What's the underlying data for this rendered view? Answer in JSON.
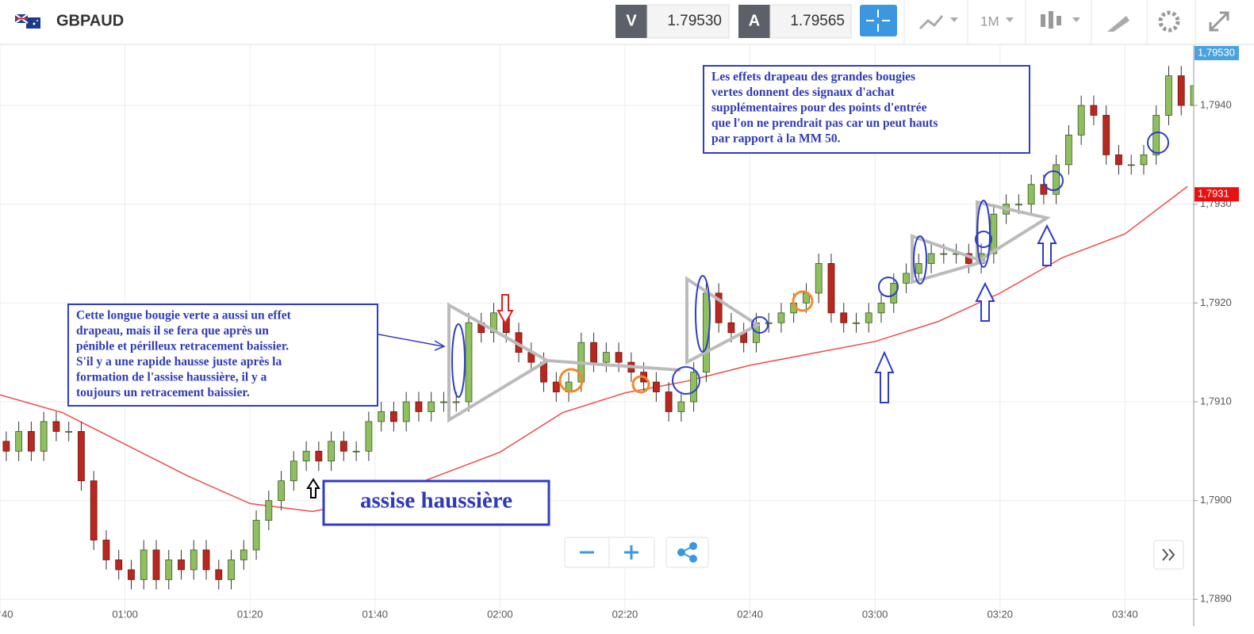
{
  "header": {
    "symbol": "GBPAUD",
    "bid_label": "V",
    "bid": "1.79530",
    "ask_label": "A",
    "ask": "1.79565",
    "timeframe": "1M"
  },
  "chart_data": {
    "type": "candlestick",
    "x": [
      "00:40",
      "00:42",
      "00:44",
      "00:46",
      "00:48",
      "00:50",
      "00:52",
      "00:54",
      "00:56",
      "00:58",
      "01:00",
      "01:02",
      "01:04",
      "01:06",
      "01:08",
      "01:10",
      "01:12",
      "01:14",
      "01:16",
      "01:18",
      "01:20",
      "01:22",
      "01:24",
      "01:26",
      "01:28",
      "01:30",
      "01:32",
      "01:34",
      "01:36",
      "01:38",
      "01:40",
      "01:42",
      "01:44",
      "01:46",
      "01:48",
      "01:50",
      "01:52",
      "01:54",
      "01:56",
      "01:58",
      "02:00",
      "02:02",
      "02:04",
      "02:06",
      "02:08",
      "02:10",
      "02:12",
      "02:14",
      "02:16",
      "02:18",
      "02:20",
      "02:22",
      "02:24",
      "02:26",
      "02:28",
      "02:30",
      "02:32",
      "02:34",
      "02:36",
      "02:38",
      "02:40",
      "02:42",
      "02:44",
      "02:46",
      "02:48",
      "02:50",
      "02:52",
      "02:54",
      "02:56",
      "02:58",
      "03:00",
      "03:02",
      "03:04",
      "03:06",
      "03:08",
      "03:10",
      "03:12",
      "03:14",
      "03:16",
      "03:18",
      "03:20",
      "03:22",
      "03:24",
      "03:26",
      "03:28",
      "03:30",
      "03:32",
      "03:34",
      "03:36",
      "03:38",
      "03:40",
      "03:42",
      "03:44",
      "03:46",
      "03:48",
      "03:50"
    ],
    "open": [
      1.7906,
      1.7905,
      1.7907,
      1.7905,
      1.7908,
      1.7907,
      1.7907,
      1.7902,
      1.7896,
      1.7894,
      1.7893,
      1.7892,
      1.7895,
      1.7892,
      1.7894,
      1.7893,
      1.7895,
      1.7893,
      1.7892,
      1.7894,
      1.7895,
      1.7898,
      1.79,
      1.7902,
      1.7904,
      1.7905,
      1.7904,
      1.7906,
      1.7905,
      1.7905,
      1.7908,
      1.7909,
      1.7908,
      1.791,
      1.7909,
      1.791,
      1.791,
      1.791,
      1.7918,
      1.7917,
      1.7919,
      1.7917,
      1.7915,
      1.7914,
      1.7912,
      1.7911,
      1.7912,
      1.7916,
      1.7914,
      1.7915,
      1.7914,
      1.7913,
      1.7912,
      1.7911,
      1.7909,
      1.791,
      1.7913,
      1.7921,
      1.7918,
      1.7917,
      1.7916,
      1.7918,
      1.7918,
      1.7919,
      1.792,
      1.7921,
      1.7924,
      1.7919,
      1.7918,
      1.7918,
      1.7919,
      1.792,
      1.7922,
      1.7923,
      1.7924,
      1.7925,
      1.7925,
      1.7925,
      1.7924,
      1.7925,
      1.7929,
      1.793,
      1.793,
      1.7932,
      1.7931,
      1.7934,
      1.7937,
      1.794,
      1.7939,
      1.7935,
      1.7934,
      1.7934,
      1.7935,
      1.7939,
      1.7943,
      1.794
    ],
    "high": [
      1.7907,
      1.7908,
      1.7908,
      1.7909,
      1.7909,
      1.7908,
      1.7908,
      1.7903,
      1.7897,
      1.7895,
      1.7894,
      1.7896,
      1.7896,
      1.7895,
      1.7895,
      1.7896,
      1.7896,
      1.7894,
      1.7895,
      1.7896,
      1.7899,
      1.7901,
      1.7903,
      1.7905,
      1.7906,
      1.7906,
      1.7907,
      1.7907,
      1.7906,
      1.7909,
      1.791,
      1.791,
      1.7911,
      1.7911,
      1.7911,
      1.7911,
      1.7911,
      1.7919,
      1.7919,
      1.792,
      1.792,
      1.7918,
      1.7916,
      1.7915,
      1.7913,
      1.7913,
      1.7917,
      1.7917,
      1.7916,
      1.7916,
      1.7915,
      1.7914,
      1.7913,
      1.7912,
      1.7911,
      1.7914,
      1.7922,
      1.7922,
      1.7919,
      1.7918,
      1.7919,
      1.7919,
      1.792,
      1.7921,
      1.7922,
      1.7925,
      1.7925,
      1.792,
      1.7919,
      1.792,
      1.7921,
      1.7923,
      1.7924,
      1.7925,
      1.7926,
      1.7926,
      1.7926,
      1.7926,
      1.7926,
      1.793,
      1.7931,
      1.7931,
      1.7933,
      1.7933,
      1.7935,
      1.7938,
      1.7941,
      1.7941,
      1.794,
      1.7936,
      1.7935,
      1.7936,
      1.794,
      1.7944,
      1.7944,
      1.7943
    ],
    "low": [
      1.7904,
      1.7904,
      1.7904,
      1.7904,
      1.7906,
      1.7906,
      1.7901,
      1.7895,
      1.7893,
      1.7892,
      1.7891,
      1.7891,
      1.7891,
      1.7891,
      1.7892,
      1.7892,
      1.7892,
      1.7891,
      1.7891,
      1.7893,
      1.7894,
      1.7897,
      1.7899,
      1.7901,
      1.7903,
      1.7903,
      1.7903,
      1.7904,
      1.7904,
      1.7904,
      1.7907,
      1.7907,
      1.7907,
      1.7908,
      1.7908,
      1.7909,
      1.7909,
      1.7909,
      1.7916,
      1.7916,
      1.7916,
      1.7914,
      1.7913,
      1.7911,
      1.791,
      1.791,
      1.7911,
      1.7913,
      1.7913,
      1.7913,
      1.7912,
      1.7911,
      1.791,
      1.7908,
      1.7908,
      1.7909,
      1.7912,
      1.7917,
      1.7916,
      1.7915,
      1.7915,
      1.7917,
      1.7917,
      1.7918,
      1.7919,
      1.792,
      1.7918,
      1.7917,
      1.7917,
      1.7917,
      1.7918,
      1.7919,
      1.7921,
      1.7922,
      1.7923,
      1.7924,
      1.7924,
      1.7923,
      1.7923,
      1.7924,
      1.7928,
      1.7929,
      1.7929,
      1.793,
      1.793,
      1.7933,
      1.7936,
      1.7938,
      1.7934,
      1.7933,
      1.7933,
      1.7933,
      1.7934,
      1.7938,
      1.7939,
      1.7939
    ],
    "close": [
      1.7905,
      1.7907,
      1.7905,
      1.7908,
      1.7907,
      1.7907,
      1.7902,
      1.7896,
      1.7894,
      1.7893,
      1.7892,
      1.7895,
      1.7892,
      1.7894,
      1.7893,
      1.7895,
      1.7893,
      1.7892,
      1.7894,
      1.7895,
      1.7898,
      1.79,
      1.7902,
      1.7904,
      1.7905,
      1.7904,
      1.7906,
      1.7905,
      1.7905,
      1.7908,
      1.7909,
      1.7908,
      1.791,
      1.7909,
      1.791,
      1.791,
      1.791,
      1.7918,
      1.7917,
      1.7919,
      1.7917,
      1.7915,
      1.7914,
      1.7912,
      1.7911,
      1.7912,
      1.7916,
      1.7914,
      1.7915,
      1.7914,
      1.7913,
      1.7912,
      1.7911,
      1.7909,
      1.791,
      1.7913,
      1.7921,
      1.7918,
      1.7917,
      1.7916,
      1.7918,
      1.7918,
      1.7919,
      1.792,
      1.7921,
      1.7924,
      1.7919,
      1.7918,
      1.7918,
      1.7919,
      1.792,
      1.7922,
      1.7923,
      1.7924,
      1.7925,
      1.7925,
      1.7925,
      1.7924,
      1.7925,
      1.7929,
      1.793,
      1.793,
      1.7932,
      1.7931,
      1.7934,
      1.7937,
      1.794,
      1.7939,
      1.7935,
      1.7934,
      1.7934,
      1.7935,
      1.7939,
      1.7943,
      1.794,
      1.7942
    ],
    "up_color": "#8fbf5f",
    "down_color": "#b8281e",
    "ma_x": [
      "00:40",
      "00:50",
      "01:00",
      "01:10",
      "01:20",
      "01:30",
      "01:40",
      "01:50",
      "02:00",
      "02:10",
      "02:20",
      "02:30",
      "02:40",
      "02:50",
      "03:00",
      "03:10",
      "03:20",
      "03:30",
      "03:40",
      "03:50"
    ],
    "ma_values": [
      1.79107,
      1.79089,
      1.79057,
      1.79025,
      1.78997,
      1.78989,
      1.79001,
      1.79025,
      1.79049,
      1.79089,
      1.79109,
      1.79121,
      1.79137,
      1.79149,
      1.79161,
      1.79181,
      1.7921,
      1.79246,
      1.7927,
      1.79318
    ],
    "ma_color": "#ef4b4b",
    "xlim": [
      "00:40",
      "03:51"
    ],
    "xticks": [
      {
        "value": "00:40",
        "label": "40"
      },
      "01:00",
      "01:20",
      "01:40",
      "02:00",
      "02:20",
      "02:40",
      "03:00",
      "03:20",
      "03:40"
    ],
    "ylim": [
      1.78889,
      1.79461
    ],
    "yticks": [
      {
        "value": 1.789,
        "label": "1,7890"
      },
      {
        "value": 1.79,
        "label": "1,7900"
      },
      {
        "value": 1.791,
        "label": "1,7910"
      },
      {
        "value": 1.792,
        "label": "1,7920"
      },
      {
        "value": 1.793,
        "label": "1,7930"
      },
      {
        "value": 1.794,
        "label": "1,7940"
      }
    ],
    "grid": true,
    "price_tags": [
      {
        "value": 1.7953,
        "label": "1,79530",
        "color": "#4aa3df"
      },
      {
        "value": 1.7931,
        "label": "1,7931",
        "color": "#e8110f"
      }
    ],
    "annotations": [
      {
        "lines": [
          "Cette longue bougie verte a aussi un effet",
          "drapeau, mais il se fera que après un",
          "pénible et périlleux retracement baissier.",
          "S'il y a une rapide hausse juste après la",
          "formation de l'assise haussière, il y a",
          "toujours un retracement baissier."
        ]
      },
      {
        "lines": [
          "Les effets drapeau des grandes bougies",
          "vertes donnent des signaux d'achat",
          "supplémentaires pour des points d'entrée",
          "que l'on ne prendrait pas car un peut hauts",
          "par rapport à la MM 50."
        ]
      },
      {
        "lines": [
          "assise haussière"
        ]
      }
    ]
  }
}
